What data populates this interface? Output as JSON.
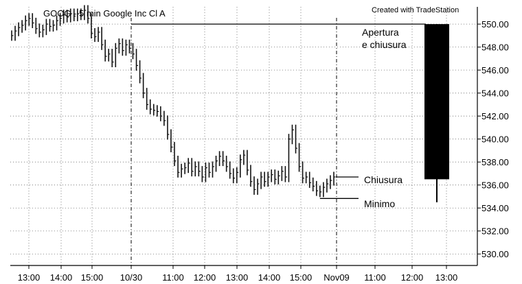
{
  "chart_data": {
    "type": "bar",
    "title": "GOOG - 5 min  Google Inc Cl A",
    "credit": "Created with TradeStation",
    "ylim": [
      529,
      551.5
    ],
    "y_ticks": [
      "530.00",
      "532.00",
      "534.00",
      "536.00",
      "538.00",
      "540.00",
      "542.00",
      "544.00",
      "546.00",
      "548.00",
      "550.00"
    ],
    "x_ticks": [
      "13:00",
      "14:00",
      "15:00",
      "10/30",
      "11:00",
      "12:00",
      "13:00",
      "14:00",
      "15:00",
      "Nov09",
      "11:00",
      "12:00",
      "13:00"
    ],
    "series": [
      {
        "name": "",
        "x": [
          0,
          1,
          2,
          3,
          4,
          5,
          6,
          7,
          8,
          9,
          10,
          11,
          12,
          13,
          14,
          15,
          16,
          17,
          18,
          19,
          20,
          21,
          22,
          23,
          24,
          25,
          26,
          27,
          28,
          29,
          30,
          31,
          32,
          33,
          34,
          35,
          36,
          37,
          38,
          39,
          40,
          41,
          42,
          43,
          44,
          45,
          46,
          47,
          48,
          49,
          50,
          51,
          52,
          53,
          54,
          55,
          56,
          57,
          58,
          59,
          60,
          61,
          62,
          63,
          64,
          65,
          66,
          67,
          68,
          69,
          70,
          71,
          72,
          73,
          74,
          75,
          76,
          77,
          78,
          79,
          80,
          81,
          82,
          83,
          84,
          85,
          86,
          87,
          88,
          89,
          90,
          91,
          92,
          93
        ],
        "y": [
          549.0,
          549.4,
          549.7,
          549.9,
          550.3,
          550.5,
          550.1,
          549.6,
          549.3,
          549.5,
          550.0,
          549.8,
          549.9,
          550.3,
          550.5,
          550.8,
          550.6,
          550.9,
          550.7,
          550.9,
          550.8,
          551.2,
          550.5,
          549.2,
          548.9,
          549.3,
          548.2,
          547.2,
          547.4,
          546.7,
          547.9,
          548.3,
          547.7,
          548.2,
          547.9,
          547.4,
          546.4,
          545.3,
          544.0,
          543.0,
          542.6,
          542.5,
          542.4,
          542.0,
          541.6,
          540.4,
          539.3,
          538.1,
          537.1,
          537.4,
          537.5,
          537.9,
          537.2,
          537.6,
          537.2,
          536.7,
          537.5,
          537.1,
          537.6,
          538.1,
          538.5,
          538.1,
          537.6,
          537.0,
          536.6,
          537.1,
          538.2,
          538.6,
          537.3,
          536.3,
          535.6,
          536.1,
          536.7,
          536.3,
          536.7,
          536.9,
          536.5,
          536.8,
          537.2,
          536.7,
          540.0,
          540.8,
          539.2,
          537.6,
          536.6,
          536.7,
          536.2,
          535.9,
          535.5,
          535.4,
          535.8,
          536.1,
          536.4,
          536.7
        ]
      }
    ],
    "candle": {
      "open": 550.0,
      "close": 536.5,
      "high": 550.0,
      "low": 534.5
    },
    "annotations": {
      "open_close": [
        "Apertura",
        "e chiusura"
      ],
      "close": "Chiusura",
      "low": "Minimo"
    }
  }
}
